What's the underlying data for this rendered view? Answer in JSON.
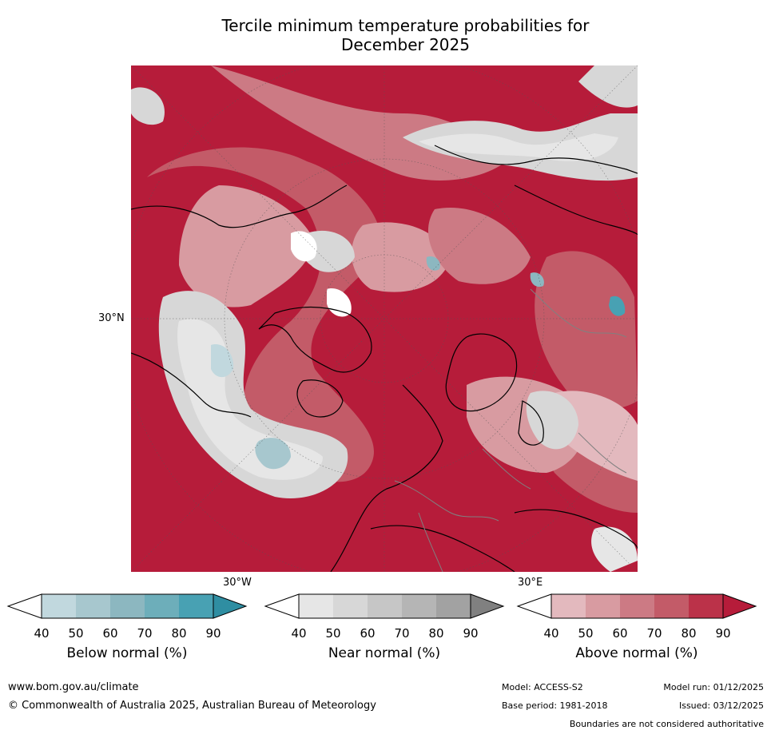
{
  "title_line1": "Tercile minimum temperature probabilities for",
  "title_line2": "December 2025",
  "map": {
    "lat_label": "30°N",
    "lon_label_left": "30°W",
    "lon_label_right": "30°E"
  },
  "colorbars": [
    {
      "label": "Below normal (%)",
      "ticks": [
        "40",
        "50",
        "60",
        "70",
        "80",
        "90"
      ],
      "colors": [
        "#c1d8de",
        "#a7c7ce",
        "#8cb7c0",
        "#6daeba",
        "#48a1b3",
        "#2f8ea2"
      ]
    },
    {
      "label": "Near normal (%)",
      "ticks": [
        "40",
        "50",
        "60",
        "70",
        "80",
        "90"
      ],
      "colors": [
        "#e6e6e6",
        "#d7d7d7",
        "#c6c6c6",
        "#b5b5b5",
        "#a2a2a2",
        "#808080"
      ]
    },
    {
      "label": "Above normal (%)",
      "ticks": [
        "40",
        "50",
        "60",
        "70",
        "80",
        "90"
      ],
      "colors": [
        "#e3b9be",
        "#d89ba1",
        "#cc7a84",
        "#c35b68",
        "#bb3249",
        "#b61c3a"
      ]
    }
  ],
  "footer": {
    "url": "www.bom.gov.au/climate",
    "copyright": "© Commonwealth of Australia 2025, Australian Bureau of Meteorology",
    "model": "Model: ACCESS-S2",
    "model_run": "Model run: 01/12/2025",
    "base_period": "Base period: 1981-2018",
    "issued": "Issued: 03/12/2025",
    "disclaimer": "Boundaries are not considered authoritative"
  }
}
